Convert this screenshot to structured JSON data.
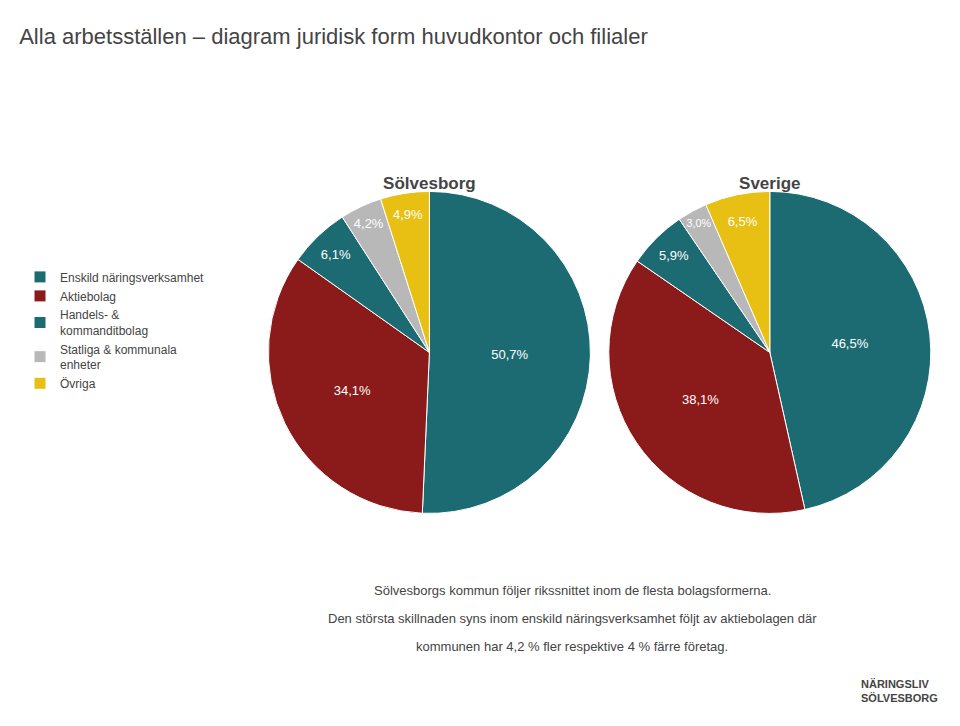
{
  "title": "Alla arbetsställen – diagram juridisk form huvudkontor och filialer",
  "legend": "left",
  "annotations": [
    "Sölvesborgs kommun följer rikssnittet inom de flesta bolagsformerna.",
    "Den största skillnaden syns inom enskild näringsverksamhet följt av aktiebolagen där",
    "kommunen har 4,2 % fler respektive 4 % färre företag.",
    "NÄRINGSLIV\nSÖLVESBORG"
  ],
  "chart_data": [
    {
      "type": "pie",
      "title": "Sölvesborg",
      "categories": [
        "Enskild näringsverksamhet",
        "Aktiebolag",
        "Handels- &\nkommanditbolag",
        "Statliga & kommunala\nenheter",
        "Övriga"
      ],
      "values": [
        50.7,
        34.1,
        6.1,
        4.2,
        4.9
      ],
      "value_labels": [
        "50,7%",
        "34,1%",
        "6,1%",
        "4,2%",
        "4,9%"
      ],
      "colors": [
        "#1d6b72",
        "#8b1a1a",
        "#1d6b72",
        "#b8b8b8",
        "#e8c013"
      ],
      "data_labels": true
    },
    {
      "type": "pie",
      "title": "Sverige",
      "categories": [
        "Enskild näringsverksamhet",
        "Aktiebolag",
        "Handels- &\nkommanditbolag",
        "Statliga & kommunala\nenheter",
        "Övriga"
      ],
      "values": [
        46.5,
        38.1,
        5.9,
        3.0,
        6.5
      ],
      "value_labels": [
        "46,5%",
        "38,1%",
        "5,9%",
        "3,0%",
        "6,5%"
      ],
      "colors": [
        "#1d6b72",
        "#8b1a1a",
        "#1d6b72",
        "#b8b8b8",
        "#e8c013"
      ],
      "data_labels": true
    }
  ]
}
